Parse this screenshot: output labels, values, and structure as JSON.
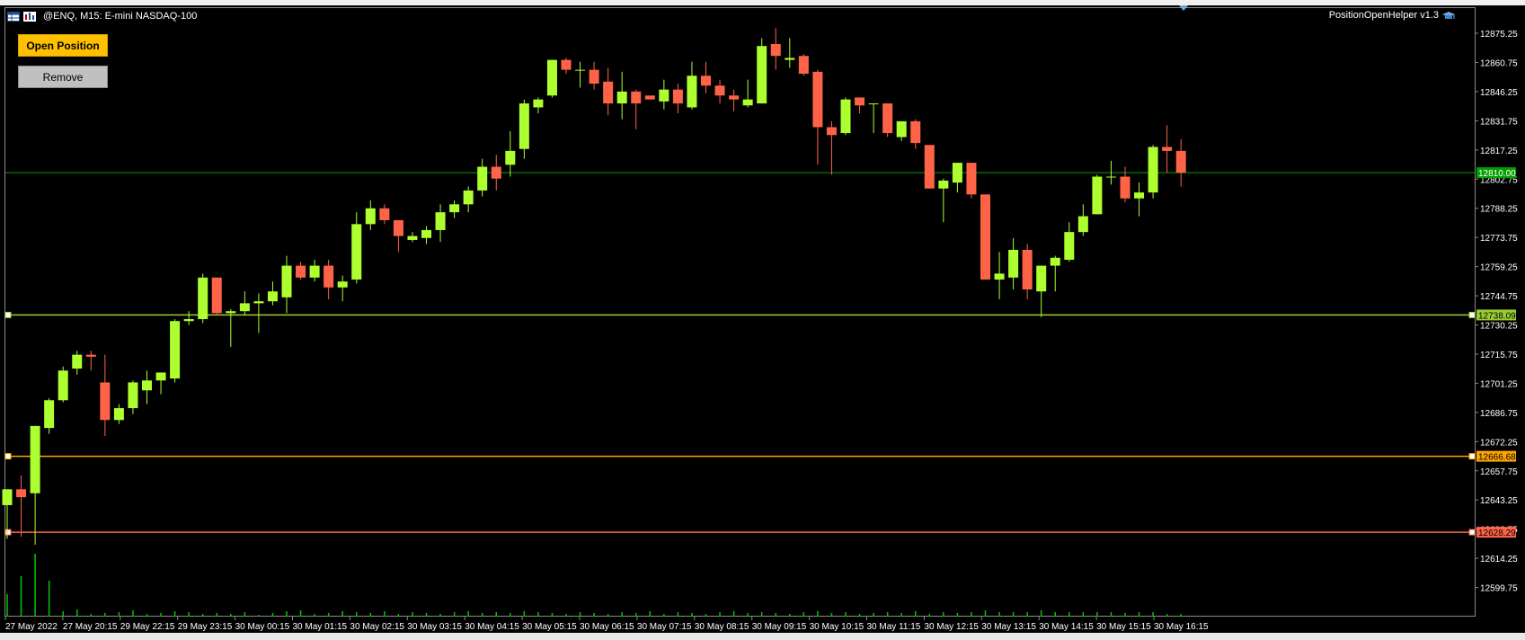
{
  "window": {
    "symbol_title": "@ENQ, M15:  E-mini NASDAQ-100",
    "expert_name": "PositionOpenHelper v1.3"
  },
  "buttons": {
    "open_label": "Open Position",
    "remove_label": "Remove"
  },
  "colors": {
    "background": "#000000",
    "bull": "#adff2f",
    "bear": "#ff6347",
    "volume": "#00c800",
    "price_line": "#00a000",
    "entry_line": "#9acd32",
    "tp_line": "#ffa500",
    "sl_line": "#ff6347",
    "axis_text": "#ffffff"
  },
  "chart_data": {
    "type": "candlestick",
    "symbol": "@ENQ",
    "timeframe": "M15",
    "grid": false,
    "ylim": [
      12592,
      12890
    ],
    "y_ticks": [
      "12875.25",
      "12860.75",
      "12846.25",
      "12831.75",
      "12817.25",
      "12802.75",
      "12788.25",
      "12773.75",
      "12759.25",
      "12744.75",
      "12730.25",
      "12715.75",
      "12701.25",
      "12686.75",
      "12672.25",
      "12657.75",
      "12643.25",
      "12628.75",
      "12614.25",
      "12599.75"
    ],
    "x_ticks": [
      "27 May 2022",
      "27 May 20:15",
      "29 May 22:15",
      "29 May 23:15",
      "30 May 00:15",
      "30 May 01:15",
      "30 May 02:15",
      "30 May 03:15",
      "30 May 04:15",
      "30 May 05:15",
      "30 May 06:15",
      "30 May 07:15",
      "30 May 08:15",
      "30 May 09:15",
      "30 May 10:15",
      "30 May 11:15",
      "30 May 12:15",
      "30 May 13:15",
      "30 May 14:15",
      "30 May 15:15",
      "30 May 16:15"
    ],
    "candles": [
      {
        "o": 12642,
        "h": 12650,
        "l": 12625,
        "c": 12650
      },
      {
        "o": 12650,
        "h": 12657,
        "l": 12626,
        "c": 12646
      },
      {
        "o": 12648,
        "h": 12682,
        "l": 12622,
        "c": 12682
      },
      {
        "o": 12681,
        "h": 12696,
        "l": 12678,
        "c": 12695
      },
      {
        "o": 12695,
        "h": 12712,
        "l": 12694,
        "c": 12710
      },
      {
        "o": 12711,
        "h": 12720,
        "l": 12708,
        "c": 12718
      },
      {
        "o": 12718,
        "h": 12720,
        "l": 12710,
        "c": 12717
      },
      {
        "o": 12704,
        "h": 12718,
        "l": 12677,
        "c": 12685
      },
      {
        "o": 12685,
        "h": 12693,
        "l": 12683,
        "c": 12691
      },
      {
        "o": 12691,
        "h": 12705,
        "l": 12688,
        "c": 12704
      },
      {
        "o": 12700,
        "h": 12710,
        "l": 12693,
        "c": 12705
      },
      {
        "o": 12705,
        "h": 12708,
        "l": 12698,
        "c": 12709
      },
      {
        "o": 12706,
        "h": 12736,
        "l": 12704,
        "c": 12735
      },
      {
        "o": 12735,
        "h": 12740,
        "l": 12733,
        "c": 12736
      },
      {
        "o": 12736,
        "h": 12759,
        "l": 12734,
        "c": 12757
      },
      {
        "o": 12757,
        "h": 12757,
        "l": 12738,
        "c": 12739
      },
      {
        "o": 12739,
        "h": 12741,
        "l": 12722,
        "c": 12740
      },
      {
        "o": 12740,
        "h": 12750,
        "l": 12738,
        "c": 12744
      },
      {
        "o": 12744,
        "h": 12749,
        "l": 12729,
        "c": 12745
      },
      {
        "o": 12745,
        "h": 12755,
        "l": 12743,
        "c": 12750
      },
      {
        "o": 12747,
        "h": 12768,
        "l": 12739,
        "c": 12763
      },
      {
        "o": 12763,
        "h": 12765,
        "l": 12756,
        "c": 12757
      },
      {
        "o": 12757,
        "h": 12766,
        "l": 12755,
        "c": 12763
      },
      {
        "o": 12763,
        "h": 12766,
        "l": 12746,
        "c": 12752
      },
      {
        "o": 12752,
        "h": 12758,
        "l": 12745,
        "c": 12755
      },
      {
        "o": 12756,
        "h": 12790,
        "l": 12754,
        "c": 12784
      },
      {
        "o": 12784,
        "h": 12796,
        "l": 12781,
        "c": 12792
      },
      {
        "o": 12792,
        "h": 12794,
        "l": 12784,
        "c": 12786
      },
      {
        "o": 12786,
        "h": 12786,
        "l": 12770,
        "c": 12778
      },
      {
        "o": 12776,
        "h": 12780,
        "l": 12775,
        "c": 12778
      },
      {
        "o": 12777,
        "h": 12783,
        "l": 12774,
        "c": 12781
      },
      {
        "o": 12781,
        "h": 12794,
        "l": 12775,
        "c": 12790
      },
      {
        "o": 12790,
        "h": 12796,
        "l": 12787,
        "c": 12794
      },
      {
        "o": 12794,
        "h": 12803,
        "l": 12790,
        "c": 12801
      },
      {
        "o": 12801,
        "h": 12817,
        "l": 12798,
        "c": 12813
      },
      {
        "o": 12813,
        "h": 12819,
        "l": 12801,
        "c": 12807
      },
      {
        "o": 12814,
        "h": 12831,
        "l": 12808,
        "c": 12821
      },
      {
        "o": 12822,
        "h": 12847,
        "l": 12817,
        "c": 12845
      },
      {
        "o": 12843,
        "h": 12848,
        "l": 12840,
        "c": 12847
      },
      {
        "o": 12849,
        "h": 12867,
        "l": 12848,
        "c": 12867
      },
      {
        "o": 12867,
        "h": 12868,
        "l": 12860,
        "c": 12862
      },
      {
        "o": 12862,
        "h": 12866,
        "l": 12853,
        "c": 12862
      },
      {
        "o": 12862,
        "h": 12866,
        "l": 12852,
        "c": 12855
      },
      {
        "o": 12856,
        "h": 12863,
        "l": 12839,
        "c": 12845
      },
      {
        "o": 12845,
        "h": 12861,
        "l": 12837,
        "c": 12851
      },
      {
        "o": 12851,
        "h": 12852,
        "l": 12832,
        "c": 12845
      },
      {
        "o": 12849,
        "h": 12848,
        "l": 12847,
        "c": 12847
      },
      {
        "o": 12846,
        "h": 12857,
        "l": 12842,
        "c": 12852
      },
      {
        "o": 12852,
        "h": 12855,
        "l": 12840,
        "c": 12845
      },
      {
        "o": 12843,
        "h": 12866,
        "l": 12842,
        "c": 12859
      },
      {
        "o": 12859,
        "h": 12866,
        "l": 12850,
        "c": 12854
      },
      {
        "o": 12854,
        "h": 12857,
        "l": 12845,
        "c": 12849
      },
      {
        "o": 12849,
        "h": 12852,
        "l": 12841,
        "c": 12847
      },
      {
        "o": 12844,
        "h": 12857,
        "l": 12843,
        "c": 12847
      },
      {
        "o": 12845,
        "h": 12878,
        "l": 12845,
        "c": 12874
      },
      {
        "o": 12875,
        "h": 12883,
        "l": 12862,
        "c": 12869
      },
      {
        "o": 12867,
        "h": 12878,
        "l": 12863,
        "c": 12868
      },
      {
        "o": 12869,
        "h": 12870,
        "l": 12859,
        "c": 12860
      },
      {
        "o": 12861,
        "h": 12862,
        "l": 12814,
        "c": 12833
      },
      {
        "o": 12833,
        "h": 12836,
        "l": 12809,
        "c": 12829
      },
      {
        "o": 12830,
        "h": 12848,
        "l": 12829,
        "c": 12847
      },
      {
        "o": 12848,
        "h": 12848,
        "l": 12840,
        "c": 12844
      },
      {
        "o": 12845,
        "h": 12845,
        "l": 12830,
        "c": 12845
      },
      {
        "o": 12845,
        "h": 12845,
        "l": 12828,
        "c": 12830
      },
      {
        "o": 12828,
        "h": 12835,
        "l": 12826,
        "c": 12836
      },
      {
        "o": 12836,
        "h": 12837,
        "l": 12822,
        "c": 12825
      },
      {
        "o": 12824,
        "h": 12824,
        "l": 12802,
        "c": 12802
      },
      {
        "o": 12802,
        "h": 12807,
        "l": 12785,
        "c": 12806
      },
      {
        "o": 12805,
        "h": 12815,
        "l": 12800,
        "c": 12815
      },
      {
        "o": 12815,
        "h": 12815,
        "l": 12797,
        "c": 12799
      },
      {
        "o": 12799,
        "h": 12799,
        "l": 12757,
        "c": 12756
      },
      {
        "o": 12756,
        "h": 12770,
        "l": 12746,
        "c": 12759
      },
      {
        "o": 12757,
        "h": 12777,
        "l": 12751,
        "c": 12771
      },
      {
        "o": 12771,
        "h": 12774,
        "l": 12746,
        "c": 12751
      },
      {
        "o": 12750,
        "h": 12763,
        "l": 12737,
        "c": 12763
      },
      {
        "o": 12763,
        "h": 12768,
        "l": 12750,
        "c": 12767
      },
      {
        "o": 12766,
        "h": 12785,
        "l": 12765,
        "c": 12780
      },
      {
        "o": 12780,
        "h": 12794,
        "l": 12778,
        "c": 12788
      },
      {
        "o": 12789,
        "h": 12809,
        "l": 12789,
        "c": 12808
      },
      {
        "o": 12808,
        "h": 12816,
        "l": 12804,
        "c": 12808
      },
      {
        "o": 12808,
        "h": 12813,
        "l": 12795,
        "c": 12797
      },
      {
        "o": 12797,
        "h": 12805,
        "l": 12788,
        "c": 12800
      },
      {
        "o": 12800,
        "h": 12824,
        "l": 12797,
        "c": 12823
      },
      {
        "o": 12823,
        "h": 12834,
        "l": 12810,
        "c": 12821
      },
      {
        "o": 12821,
        "h": 12827,
        "l": 12803,
        "c": 12810
      }
    ],
    "volume_heights": [
      25,
      45,
      70,
      40,
      6,
      8,
      3,
      4,
      5,
      7,
      3,
      4,
      6,
      5,
      3,
      4,
      3,
      5,
      2,
      4,
      6,
      7,
      3,
      4,
      6,
      5,
      4,
      6,
      3,
      5,
      4,
      3,
      5,
      6,
      4,
      5,
      4,
      6,
      5,
      4,
      3,
      5,
      4,
      3,
      5,
      4,
      6,
      3,
      5,
      4,
      3,
      5,
      6,
      4,
      5,
      4,
      3,
      5,
      6,
      4,
      5,
      3,
      4,
      5,
      4,
      6,
      3,
      5,
      4,
      5,
      7,
      5,
      5,
      5,
      7,
      5,
      5,
      5,
      5,
      5,
      4,
      5,
      5,
      3,
      3
    ],
    "levels": {
      "current_price": {
        "value": 12810.0,
        "label": "12810.00"
      },
      "entry": {
        "value": 12738.09,
        "label": "12738.09"
      },
      "take_profit": {
        "value": 12666.68,
        "label": "12666.68"
      },
      "stop_loss": {
        "value": 12628.29,
        "label": "12628.29"
      }
    }
  }
}
